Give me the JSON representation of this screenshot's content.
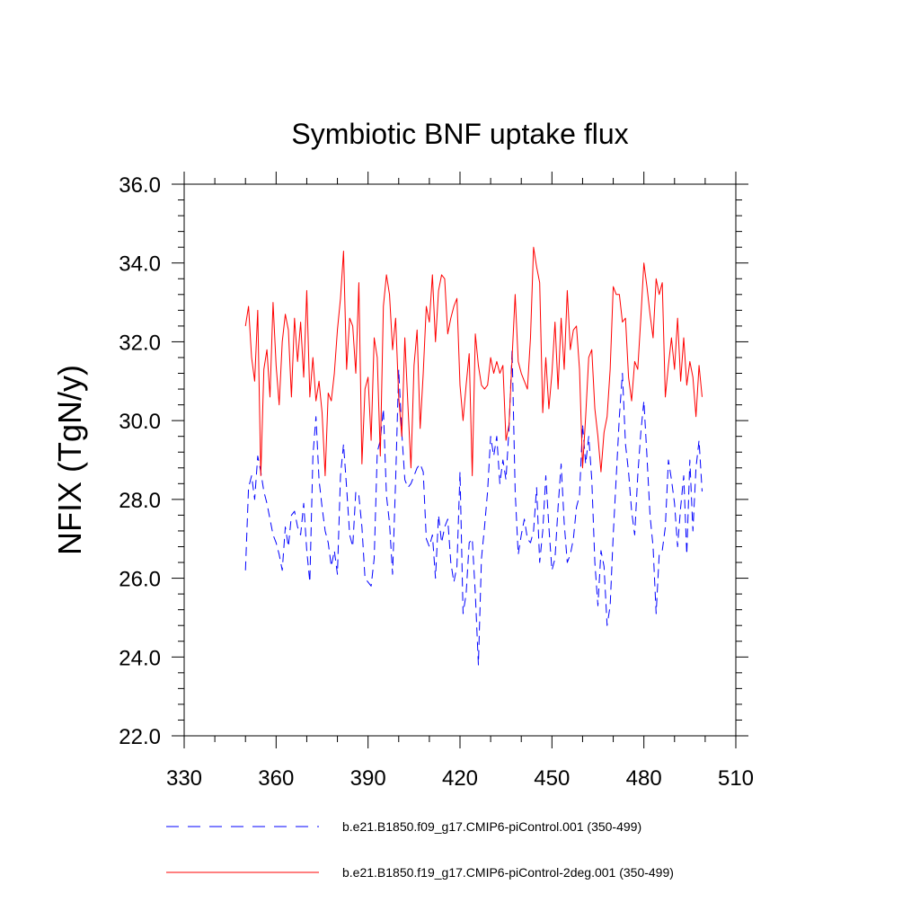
{
  "chart_data": {
    "type": "line",
    "title": "Symbiotic BNF uptake flux",
    "xlabel": "",
    "ylabel": "NFIX  (TgN/y)",
    "xlim": [
      330,
      510
    ],
    "ylim": [
      22.0,
      36.0
    ],
    "x_ticks": [
      330,
      360,
      390,
      420,
      450,
      480,
      510
    ],
    "x_tick_labels": [
      "330",
      "360",
      "390",
      "420",
      "450",
      "480",
      "510"
    ],
    "y_ticks": [
      22.0,
      24.0,
      26.0,
      28.0,
      30.0,
      32.0,
      34.0,
      36.0
    ],
    "y_tick_labels": [
      "22.0",
      "24.0",
      "26.0",
      "28.0",
      "30.0",
      "32.0",
      "34.0",
      "36.0"
    ],
    "grid": false,
    "legend_position": "bottom",
    "x": [
      350,
      351,
      352,
      353,
      354,
      355,
      356,
      357,
      358,
      359,
      360,
      361,
      362,
      363,
      364,
      365,
      366,
      367,
      368,
      369,
      370,
      371,
      372,
      373,
      374,
      375,
      376,
      377,
      378,
      379,
      380,
      381,
      382,
      383,
      384,
      385,
      386,
      387,
      388,
      389,
      390,
      391,
      392,
      393,
      394,
      395,
      396,
      397,
      398,
      399,
      400,
      401,
      402,
      403,
      404,
      405,
      406,
      407,
      408,
      409,
      410,
      411,
      412,
      413,
      414,
      415,
      416,
      417,
      418,
      419,
      420,
      421,
      422,
      423,
      424,
      425,
      426,
      427,
      428,
      429,
      430,
      431,
      432,
      433,
      434,
      435,
      436,
      437,
      438,
      439,
      440,
      441,
      442,
      443,
      444,
      445,
      446,
      447,
      448,
      449,
      450,
      451,
      452,
      453,
      454,
      455,
      456,
      457,
      458,
      459,
      460,
      461,
      462,
      463,
      464,
      465,
      466,
      467,
      468,
      469,
      470,
      471,
      472,
      473,
      474,
      475,
      476,
      477,
      478,
      479,
      480,
      481,
      482,
      483,
      484,
      485,
      486,
      487,
      488,
      489,
      490,
      491,
      492,
      493,
      494,
      495,
      496,
      497,
      498,
      499
    ],
    "series": [
      {
        "name": "b.e21.B1850.f09_g17.CMIP6-piControl.001 (350-499)",
        "color": "#0000ff",
        "dash": "dashed",
        "values": [
          26.2,
          28.3,
          28.6,
          28.0,
          29.1,
          28.7,
          28.2,
          27.9,
          27.5,
          27.1,
          26.9,
          26.6,
          26.2,
          27.3,
          26.8,
          27.6,
          27.7,
          27.3,
          27.1,
          27.9,
          26.7,
          25.9,
          29.1,
          30.1,
          28.5,
          27.8,
          27.2,
          26.9,
          26.3,
          26.7,
          26.1,
          28.6,
          29.4,
          28.3,
          27.1,
          26.8,
          28.2,
          28.1,
          27.3,
          26.0,
          25.9,
          25.8,
          26.5,
          29.2,
          29.5,
          30.3,
          28.1,
          27.4,
          26.1,
          28.5,
          31.3,
          29.7,
          28.5,
          28.3,
          28.4,
          28.6,
          28.8,
          28.9,
          28.7,
          27.0,
          26.8,
          27.1,
          26.0,
          27.6,
          26.9,
          27.3,
          27.5,
          26.4,
          25.9,
          26.3,
          28.7,
          25.1,
          25.6,
          26.9,
          27.0,
          25.6,
          23.8,
          26.5,
          27.3,
          28.2,
          29.6,
          29.1,
          29.6,
          28.4,
          29.0,
          28.5,
          29.8,
          31.8,
          28.2,
          26.6,
          27.1,
          27.5,
          27.0,
          26.9,
          27.2,
          28.3,
          26.4,
          27.2,
          28.6,
          27.3,
          26.2,
          26.5,
          27.8,
          28.9,
          27.4,
          26.4,
          26.6,
          27.0,
          27.8,
          28.1,
          29.9,
          28.9,
          29.6,
          28.5,
          26.4,
          25.3,
          26.7,
          26.3,
          24.8,
          25.3,
          27.1,
          28.6,
          30.1,
          31.2,
          29.4,
          28.7,
          27.7,
          27.1,
          28.6,
          29.7,
          30.5,
          29.1,
          27.6,
          26.8,
          25.1,
          26.6,
          26.7,
          27.3,
          29.0,
          28.5,
          27.9,
          26.8,
          27.8,
          28.6,
          26.6,
          29.0,
          27.2,
          28.8,
          29.5,
          28.2
        ]
      },
      {
        "name": "b.e21.B1850.f19_g17.CMIP6-piControl-2deg.001 (350-499)",
        "color": "#ff0000",
        "dash": "solid",
        "values": [
          32.4,
          32.9,
          31.6,
          31.0,
          32.8,
          28.6,
          31.3,
          31.8,
          30.6,
          33.0,
          31.4,
          30.4,
          32.0,
          32.7,
          32.3,
          30.6,
          32.6,
          31.5,
          32.5,
          31.1,
          33.3,
          30.6,
          31.6,
          30.5,
          31.0,
          30.2,
          28.6,
          30.7,
          30.5,
          31.2,
          32.3,
          33.1,
          34.3,
          31.3,
          32.6,
          32.4,
          31.2,
          33.5,
          28.9,
          30.8,
          31.1,
          29.5,
          32.1,
          31.6,
          29.1,
          32.9,
          33.7,
          33.2,
          31.8,
          32.6,
          30.6,
          29.6,
          32.1,
          30.4,
          28.8,
          31.4,
          32.3,
          29.8,
          31.2,
          32.9,
          32.5,
          33.7,
          32.0,
          33.3,
          33.7,
          33.6,
          32.2,
          32.6,
          32.9,
          33.1,
          30.9,
          30.0,
          30.9,
          31.7,
          28.6,
          32.2,
          31.4,
          30.9,
          30.8,
          30.9,
          31.6,
          31.2,
          31.5,
          31.2,
          31.4,
          29.5,
          29.9,
          31.6,
          33.2,
          31.5,
          31.2,
          31.0,
          30.8,
          32.1,
          34.4,
          33.9,
          33.5,
          30.2,
          31.6,
          30.3,
          31.2,
          32.5,
          30.8,
          32.6,
          31.3,
          33.3,
          31.8,
          32.3,
          32.4,
          31.3,
          28.8,
          30.1,
          31.6,
          31.8,
          30.3,
          29.6,
          28.7,
          29.7,
          30.1,
          31.3,
          33.4,
          33.2,
          33.2,
          32.5,
          32.6,
          31.1,
          30.5,
          31.5,
          31.3,
          32.6,
          34.0,
          33.4,
          32.7,
          32.1,
          33.6,
          33.2,
          33.5,
          30.6,
          31.4,
          32.1,
          31.3,
          32.6,
          31.0,
          32.1,
          30.9,
          31.5,
          31.1,
          30.1,
          31.4,
          30.6
        ]
      }
    ]
  }
}
